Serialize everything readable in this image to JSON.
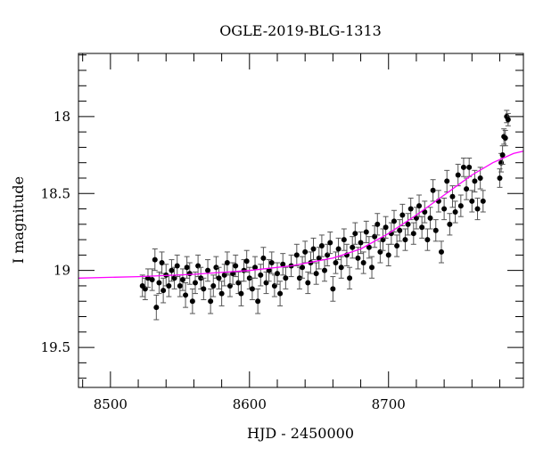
{
  "chart_data": {
    "type": "scatter",
    "title": "OGLE-2019-BLG-1313",
    "xlabel": "HJD - 2450000",
    "ylabel": "I magnitude",
    "xlim": [
      8477,
      8797
    ],
    "ylim": [
      17.59,
      19.76
    ],
    "y_inverted": true,
    "x_major_ticks": [
      8500,
      8600,
      8700
    ],
    "x_tick_labels": [
      "8500",
      "8600",
      "8700"
    ],
    "x_minor_step": 20,
    "y_major_ticks": [
      18,
      18.5,
      19,
      19.5
    ],
    "y_tick_labels": [
      "18",
      "18.5",
      "19",
      "19.5"
    ],
    "y_minor_step": 0.1,
    "grid": false,
    "colors": {
      "points": "#000000",
      "errorbars": "#555555",
      "model": "#ff00ff"
    },
    "model_curve": [
      [
        8477,
        19.05
      ],
      [
        8520,
        19.04
      ],
      [
        8560,
        19.025
      ],
      [
        8600,
        19.0
      ],
      [
        8630,
        18.97
      ],
      [
        8660,
        18.92
      ],
      [
        8680,
        18.86
      ],
      [
        8700,
        18.76
      ],
      [
        8720,
        18.64
      ],
      [
        8740,
        18.51
      ],
      [
        8760,
        18.38
      ],
      [
        8775,
        18.3
      ],
      [
        8790,
        18.24
      ],
      [
        8797,
        18.225
      ]
    ],
    "points": [
      [
        8523,
        19.1,
        0.07
      ],
      [
        8525,
        19.12,
        0.07
      ],
      [
        8527,
        19.05,
        0.06
      ],
      [
        8530,
        19.06,
        0.07
      ],
      [
        8532,
        18.93,
        0.07
      ],
      [
        8533,
        19.24,
        0.08
      ],
      [
        8535,
        19.08,
        0.07
      ],
      [
        8537,
        18.95,
        0.07
      ],
      [
        8538,
        19.13,
        0.08
      ],
      [
        8540,
        19.03,
        0.07
      ],
      [
        8542,
        19.1,
        0.07
      ],
      [
        8544,
        19.0,
        0.07
      ],
      [
        8546,
        19.05,
        0.07
      ],
      [
        8548,
        18.97,
        0.07
      ],
      [
        8550,
        19.1,
        0.07
      ],
      [
        8552,
        19.06,
        0.07
      ],
      [
        8554,
        19.16,
        0.08
      ],
      [
        8555,
        18.98,
        0.07
      ],
      [
        8557,
        19.02,
        0.07
      ],
      [
        8559,
        19.2,
        0.08
      ],
      [
        8561,
        19.08,
        0.07
      ],
      [
        8563,
        18.97,
        0.07
      ],
      [
        8565,
        19.05,
        0.07
      ],
      [
        8567,
        19.12,
        0.07
      ],
      [
        8570,
        19.0,
        0.07
      ],
      [
        8572,
        19.2,
        0.08
      ],
      [
        8574,
        19.1,
        0.07
      ],
      [
        8576,
        18.98,
        0.07
      ],
      [
        8578,
        19.05,
        0.07
      ],
      [
        8580,
        19.15,
        0.08
      ],
      [
        8582,
        19.03,
        0.07
      ],
      [
        8584,
        18.95,
        0.07
      ],
      [
        8586,
        19.1,
        0.07
      ],
      [
        8588,
        19.02,
        0.07
      ],
      [
        8590,
        18.97,
        0.07
      ],
      [
        8592,
        19.08,
        0.07
      ],
      [
        8594,
        19.15,
        0.08
      ],
      [
        8596,
        19.0,
        0.07
      ],
      [
        8598,
        18.94,
        0.07
      ],
      [
        8600,
        19.05,
        0.07
      ],
      [
        8602,
        19.12,
        0.07
      ],
      [
        8604,
        18.98,
        0.07
      ],
      [
        8606,
        19.2,
        0.08
      ],
      [
        8608,
        19.03,
        0.07
      ],
      [
        8610,
        18.92,
        0.07
      ],
      [
        8612,
        19.08,
        0.07
      ],
      [
        8614,
        19.0,
        0.07
      ],
      [
        8616,
        18.95,
        0.07
      ],
      [
        8618,
        19.1,
        0.07
      ],
      [
        8620,
        19.02,
        0.07
      ],
      [
        8622,
        19.15,
        0.08
      ],
      [
        8624,
        18.96,
        0.07
      ],
      [
        8626,
        19.05,
        0.07
      ],
      [
        8630,
        18.97,
        0.07
      ],
      [
        8634,
        18.9,
        0.07
      ],
      [
        8636,
        19.05,
        0.07
      ],
      [
        8638,
        18.98,
        0.07
      ],
      [
        8640,
        18.88,
        0.07
      ],
      [
        8642,
        19.08,
        0.07
      ],
      [
        8644,
        18.95,
        0.07
      ],
      [
        8646,
        18.86,
        0.07
      ],
      [
        8648,
        19.02,
        0.07
      ],
      [
        8650,
        18.92,
        0.07
      ],
      [
        8652,
        18.84,
        0.07
      ],
      [
        8654,
        19.0,
        0.07
      ],
      [
        8656,
        18.9,
        0.07
      ],
      [
        8658,
        18.82,
        0.07
      ],
      [
        8660,
        19.12,
        0.08
      ],
      [
        8662,
        18.95,
        0.07
      ],
      [
        8664,
        18.86,
        0.07
      ],
      [
        8666,
        18.98,
        0.07
      ],
      [
        8668,
        18.8,
        0.07
      ],
      [
        8670,
        18.9,
        0.07
      ],
      [
        8672,
        19.05,
        0.07
      ],
      [
        8674,
        18.85,
        0.07
      ],
      [
        8676,
        18.76,
        0.07
      ],
      [
        8678,
        18.92,
        0.07
      ],
      [
        8680,
        18.82,
        0.07
      ],
      [
        8682,
        18.95,
        0.07
      ],
      [
        8684,
        18.75,
        0.07
      ],
      [
        8686,
        18.85,
        0.07
      ],
      [
        8688,
        18.98,
        0.07
      ],
      [
        8690,
        18.78,
        0.07
      ],
      [
        8692,
        18.7,
        0.07
      ],
      [
        8694,
        18.88,
        0.07
      ],
      [
        8696,
        18.8,
        0.07
      ],
      [
        8698,
        18.72,
        0.07
      ],
      [
        8700,
        18.9,
        0.07
      ],
      [
        8702,
        18.76,
        0.07
      ],
      [
        8704,
        18.68,
        0.07
      ],
      [
        8706,
        18.84,
        0.07
      ],
      [
        8708,
        18.74,
        0.07
      ],
      [
        8710,
        18.64,
        0.07
      ],
      [
        8712,
        18.8,
        0.07
      ],
      [
        8714,
        18.7,
        0.07
      ],
      [
        8716,
        18.6,
        0.07
      ],
      [
        8718,
        18.76,
        0.07
      ],
      [
        8720,
        18.66,
        0.07
      ],
      [
        8722,
        18.58,
        0.07
      ],
      [
        8724,
        18.72,
        0.07
      ],
      [
        8726,
        18.62,
        0.07
      ],
      [
        8728,
        18.8,
        0.07
      ],
      [
        8730,
        18.66,
        0.07
      ],
      [
        8732,
        18.48,
        0.07
      ],
      [
        8734,
        18.74,
        0.07
      ],
      [
        8736,
        18.55,
        0.07
      ],
      [
        8738,
        18.88,
        0.07
      ],
      [
        8740,
        18.6,
        0.07
      ],
      [
        8742,
        18.42,
        0.07
      ],
      [
        8744,
        18.7,
        0.07
      ],
      [
        8746,
        18.52,
        0.07
      ],
      [
        8748,
        18.62,
        0.07
      ],
      [
        8750,
        18.38,
        0.07
      ],
      [
        8752,
        18.58,
        0.07
      ],
      [
        8754,
        18.33,
        0.06
      ],
      [
        8756,
        18.47,
        0.07
      ],
      [
        8758,
        18.33,
        0.06
      ],
      [
        8760,
        18.55,
        0.07
      ],
      [
        8762,
        18.42,
        0.07
      ],
      [
        8764,
        18.6,
        0.07
      ],
      [
        8766,
        18.4,
        0.07
      ],
      [
        8768,
        18.55,
        0.07
      ],
      [
        8780,
        18.4,
        0.06
      ],
      [
        8781,
        18.3,
        0.06
      ],
      [
        8782,
        18.25,
        0.06
      ],
      [
        8783,
        18.13,
        0.05
      ],
      [
        8784,
        18.14,
        0.05
      ],
      [
        8785,
        18.0,
        0.04
      ],
      [
        8786,
        18.02,
        0.04
      ]
    ]
  }
}
